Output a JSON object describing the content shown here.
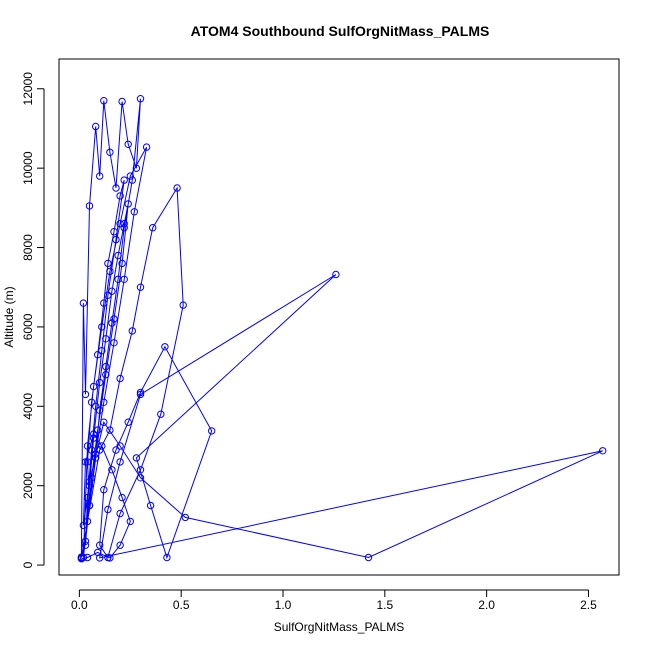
{
  "chart_data": {
    "type": "line",
    "title": "ATOM4 Southbound SulfOrgNitMass_PALMS",
    "xlabel": "SulfOrgNitMass_PALMS",
    "ylabel": "Altitude (m)",
    "xlim": [
      -0.1,
      2.65
    ],
    "ylim": [
      -250,
      12750
    ],
    "xticks": [
      "0.0",
      "0.5",
      "1.0",
      "1.5",
      "2.0",
      "2.5"
    ],
    "yticks": [
      "0",
      "2000",
      "4000",
      "6000",
      "8000",
      "10000",
      "12000"
    ],
    "grid": false,
    "series": [
      {
        "color": "#0000ff",
        "marker": "open-circle",
        "x": [
          0.01,
          0.02,
          0.03,
          0.05,
          0.08,
          0.1,
          0.12,
          0.15,
          0.18,
          0.21,
          0.24,
          0.28,
          0.3,
          0.26,
          0.22,
          0.19,
          0.16,
          0.13,
          0.1,
          0.08,
          0.05,
          0.04,
          0.06,
          0.09,
          0.12,
          0.14,
          0.17,
          0.2,
          0.22,
          0.18,
          0.14,
          0.11,
          0.08,
          0.06,
          0.04,
          0.03,
          0.05,
          0.07,
          0.1,
          0.13,
          0.16,
          0.19,
          0.22,
          0.24,
          0.21,
          0.17,
          0.13,
          0.09,
          0.06,
          0.04,
          0.02,
          0.04,
          0.07,
          0.11,
          0.15,
          0.2,
          0.25,
          0.33,
          0.27,
          0.22,
          0.17,
          0.12,
          0.08,
          0.05,
          0.03,
          0.01,
          0.1,
          0.15,
          0.2,
          0.26,
          0.3,
          0.36,
          0.48,
          0.51,
          0.4,
          0.3,
          0.2,
          0.14,
          0.1,
          0.12,
          0.18,
          0.24,
          0.3,
          0.42,
          0.65,
          0.43,
          0.35,
          0.28,
          1.26,
          0.3,
          0.2,
          0.14,
          0.1,
          2.57,
          1.42,
          0.52,
          0.3,
          0.2,
          0.12,
          0.05,
          0.02,
          0.03,
          0.07,
          0.11,
          0.16,
          0.21,
          0.25,
          0.2,
          0.15,
          0.09,
          0.04,
          0.01
        ],
        "y": [
          180,
          6600,
          4300,
          9050,
          11050,
          9800,
          11700,
          10400,
          9500,
          11680,
          10600,
          10000,
          11750,
          9700,
          8500,
          7200,
          6100,
          5000,
          3900,
          2700,
          1500,
          2600,
          4100,
          5300,
          6600,
          7600,
          8400,
          9300,
          9700,
          8200,
          6800,
          5400,
          4000,
          2900,
          1700,
          500,
          2000,
          3200,
          4600,
          5700,
          6900,
          7800,
          8600,
          9100,
          7600,
          6200,
          4800,
          3400,
          2200,
          1100,
          190,
          3000,
          4500,
          6000,
          7400,
          8600,
          9800,
          10530,
          8900,
          7200,
          5600,
          4100,
          2800,
          1500,
          600,
          200,
          2900,
          3400,
          4700,
          5900,
          7000,
          8500,
          9500,
          6550,
          3800,
          2400,
          1300,
          190,
          500,
          1900,
          2900,
          3600,
          4350,
          5500,
          3380,
          190,
          1500,
          2700,
          7320,
          4300,
          2600,
          1400,
          180,
          2880,
          190,
          1200,
          2200,
          3000,
          3600,
          2100,
          1000,
          2600,
          3300,
          3000,
          2400,
          1700,
          1100,
          500,
          180,
          320,
          190,
          160
        ]
      }
    ]
  }
}
